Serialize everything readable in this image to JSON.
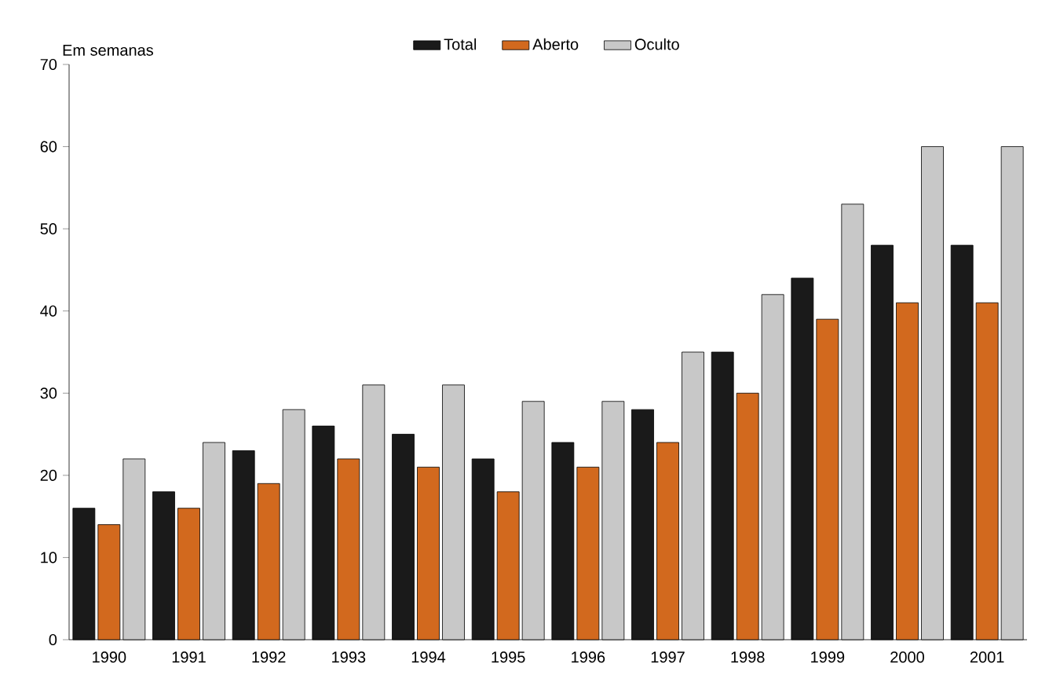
{
  "chart_data": {
    "type": "bar",
    "ylabel": "Em semanas",
    "categories": [
      "1990",
      "1991",
      "1992",
      "1993",
      "1994",
      "1995",
      "1996",
      "1997",
      "1998",
      "1999",
      "2000",
      "2001"
    ],
    "series": [
      {
        "name": "Total",
        "color": "#1a1a1a",
        "values": [
          16,
          18,
          23,
          26,
          25,
          22,
          24,
          28,
          35,
          44,
          48,
          48
        ]
      },
      {
        "name": "Aberto",
        "color": "#d2691e",
        "values": [
          14,
          16,
          19,
          22,
          21,
          18,
          21,
          24,
          30,
          39,
          41,
          41
        ]
      },
      {
        "name": "Oculto",
        "color": "#c8c8c8",
        "values": [
          22,
          24,
          28,
          31,
          31,
          29,
          29,
          35,
          42,
          53,
          60,
          60
        ]
      }
    ],
    "ylim": [
      0,
      70
    ],
    "yticks": [
      0,
      10,
      20,
      30,
      40,
      50,
      60,
      70
    ],
    "legend": "top"
  }
}
